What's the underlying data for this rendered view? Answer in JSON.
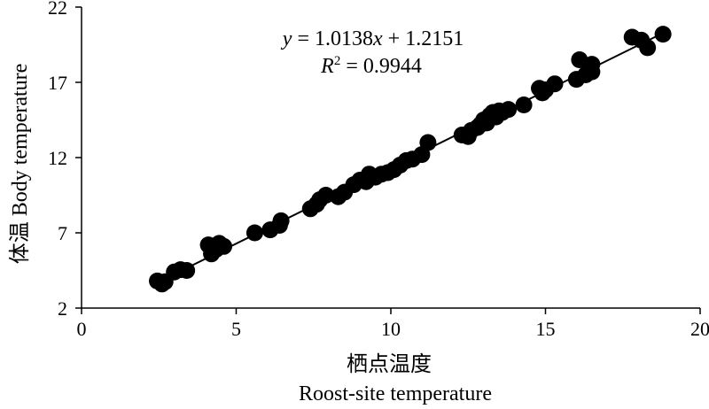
{
  "chart_data": {
    "type": "scatter",
    "xlabel_cn": "栖点温度",
    "xlabel": "Roost-site temperature",
    "ylabel": "体温 Body temperature",
    "xlim": [
      0,
      20
    ],
    "ylim": [
      2,
      22
    ],
    "x_ticks": [
      0,
      5,
      10,
      15,
      20
    ],
    "y_ticks": [
      2,
      7,
      12,
      17,
      22
    ],
    "grid": false,
    "legend": "none",
    "point_color": "#000000",
    "line_color": "#000000",
    "annotation": {
      "equation_y": "y",
      "equation_mid": " = 1.0138",
      "equation_x": "x",
      "equation_rest": " + 1.2151",
      "r2_r": "R",
      "r2_exp": "2",
      "r2_value": " = 0.9944"
    },
    "trendline": {
      "slope": 1.0138,
      "intercept": 1.2151,
      "x_range": [
        2.4,
        18.9
      ]
    },
    "series": [
      {
        "points": [
          [
            2.45,
            3.8
          ],
          [
            2.6,
            3.6
          ],
          [
            2.7,
            3.75
          ],
          [
            3.0,
            4.4
          ],
          [
            3.2,
            4.55
          ],
          [
            3.4,
            4.5
          ],
          [
            4.1,
            6.2
          ],
          [
            4.2,
            5.6
          ],
          [
            4.35,
            5.9
          ],
          [
            4.45,
            6.3
          ],
          [
            4.6,
            6.1
          ],
          [
            5.6,
            7.0
          ],
          [
            6.1,
            7.2
          ],
          [
            6.4,
            7.5
          ],
          [
            6.45,
            7.8
          ],
          [
            7.4,
            8.6
          ],
          [
            7.6,
            8.9
          ],
          [
            7.7,
            9.2
          ],
          [
            7.9,
            9.5
          ],
          [
            8.3,
            9.4
          ],
          [
            8.5,
            9.7
          ],
          [
            8.8,
            10.2
          ],
          [
            9.0,
            10.5
          ],
          [
            9.2,
            10.4
          ],
          [
            9.3,
            10.9
          ],
          [
            9.5,
            10.7
          ],
          [
            9.7,
            10.9
          ],
          [
            9.9,
            11.0
          ],
          [
            10.1,
            11.2
          ],
          [
            10.3,
            11.5
          ],
          [
            10.5,
            11.8
          ],
          [
            10.7,
            11.9
          ],
          [
            11.0,
            12.2
          ],
          [
            11.2,
            13.0
          ],
          [
            12.3,
            13.5
          ],
          [
            12.5,
            13.4
          ],
          [
            12.6,
            13.8
          ],
          [
            12.8,
            14.0
          ],
          [
            12.9,
            14.2
          ],
          [
            13.0,
            14.5
          ],
          [
            13.1,
            14.3
          ],
          [
            13.2,
            14.8
          ],
          [
            13.3,
            15.0
          ],
          [
            13.4,
            14.7
          ],
          [
            13.5,
            15.1
          ],
          [
            13.6,
            15.0
          ],
          [
            13.8,
            15.2
          ],
          [
            14.3,
            15.5
          ],
          [
            14.8,
            16.6
          ],
          [
            14.9,
            16.3
          ],
          [
            15.0,
            16.5
          ],
          [
            15.3,
            16.9
          ],
          [
            16.0,
            17.2
          ],
          [
            16.1,
            18.5
          ],
          [
            16.3,
            17.5
          ],
          [
            16.5,
            17.7
          ],
          [
            16.5,
            18.2
          ],
          [
            17.8,
            20.0
          ],
          [
            18.1,
            19.8
          ],
          [
            18.3,
            19.3
          ],
          [
            18.8,
            20.2
          ]
        ]
      }
    ]
  }
}
